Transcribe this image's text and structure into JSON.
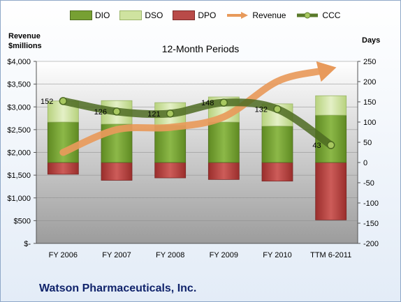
{
  "chart_data": {
    "type": "bar",
    "title": "12-Month Periods",
    "company": "Watson Pharmaceuticals, Inc.",
    "categories": [
      "FY 2006",
      "FY 2007",
      "FY 2008",
      "FY 2009",
      "FY 2010",
      "TTM 6-2011"
    ],
    "y_left": {
      "label": "Revenue\n$millions",
      "ticks": [
        "$-",
        "$500",
        "$1,000",
        "$1,500",
        "$2,000",
        "$2,500",
        "$3,000",
        "$3,500",
        "$4,000"
      ],
      "range": [
        0,
        4000
      ]
    },
    "y_right": {
      "label": "Days",
      "ticks": [
        "-200",
        "-150",
        "-100",
        "-50",
        "0",
        "50",
        "100",
        "150",
        "200",
        "250"
      ],
      "range": [
        -200,
        250
      ]
    },
    "series": [
      {
        "name": "DIO",
        "kind": "bar",
        "color": "#77a033",
        "values": [
          100,
          95,
          92,
          100,
          90,
          117
        ]
      },
      {
        "name": "DSO",
        "kind": "bar",
        "color": "#cfe3a0",
        "values": [
          52,
          58,
          56,
          62,
          55,
          48
        ]
      },
      {
        "name": "DPO",
        "kind": "bar",
        "color": "#b94a48",
        "values": [
          -29,
          -44,
          -38,
          -42,
          -46,
          -142
        ]
      },
      {
        "name": "Revenue",
        "kind": "line",
        "color": "#e89a5b",
        "values": [
          2000,
          2500,
          2550,
          2780,
          3560,
          3840
        ]
      },
      {
        "name": "CCC",
        "kind": "line",
        "color": "#5a7a2a",
        "values": [
          152,
          126,
          121,
          148,
          132,
          43
        ]
      }
    ],
    "ccc_labels": [
      "152",
      "126",
      "121",
      "148",
      "132",
      "43"
    ],
    "legend_position": "top"
  }
}
